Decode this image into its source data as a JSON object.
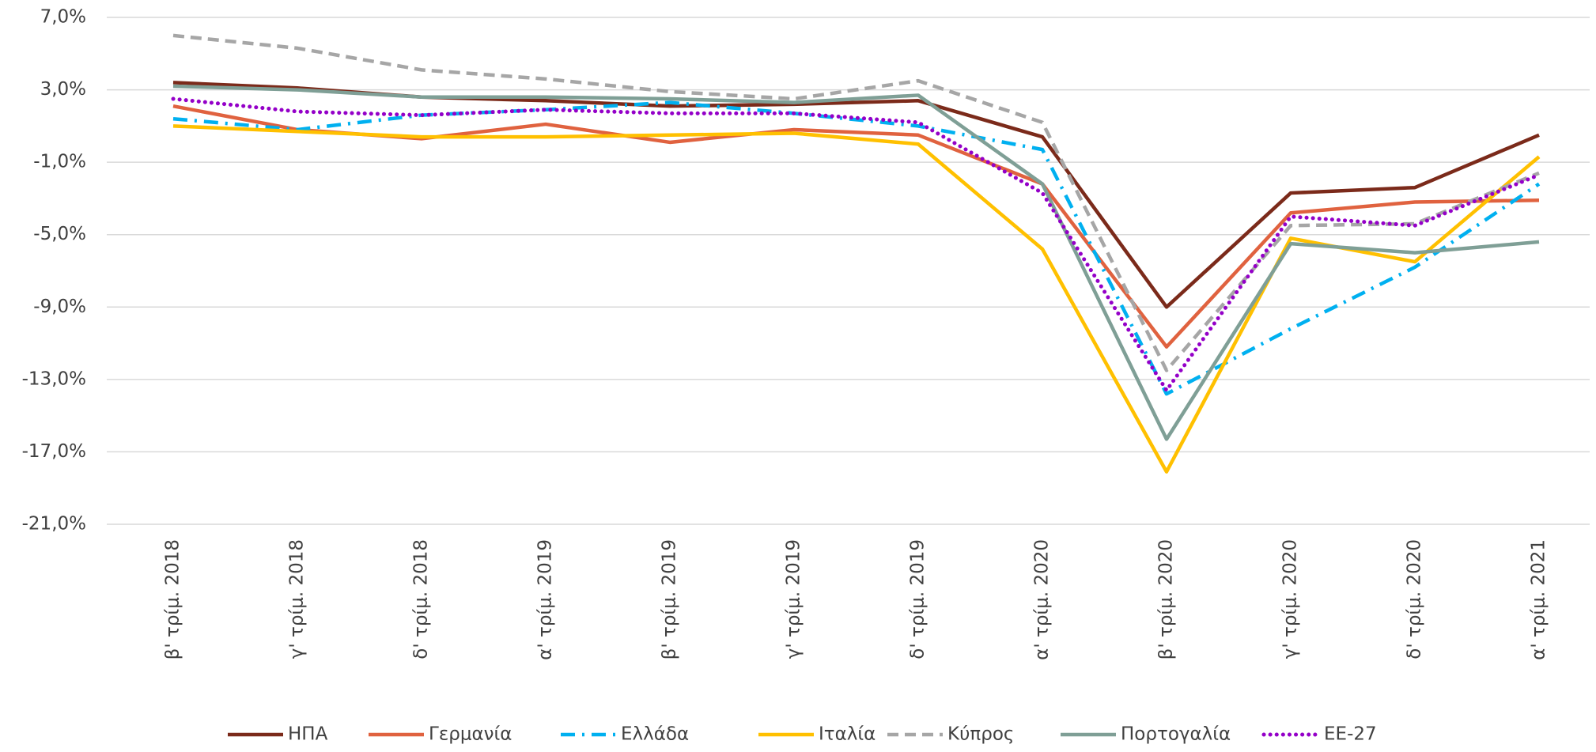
{
  "chart_data": {
    "type": "line",
    "categories": [
      "β' τρίμ. 2018",
      "γ' τρίμ. 2018",
      "δ' τρίμ. 2018",
      "α' τρίμ. 2019",
      "β' τρίμ. 2019",
      "γ' τρίμ. 2019",
      "δ' τρίμ. 2019",
      "α' τρίμ. 2020",
      "β' τρίμ. 2020",
      "γ' τρίμ. 2020",
      "δ' τρίμ. 2020",
      "α' τρίμ. 2021"
    ],
    "series": [
      {
        "name": "ΗΠΑ",
        "color": "#7b2a1a",
        "dash": "solid",
        "values": [
          3.4,
          3.1,
          2.6,
          2.4,
          2.1,
          2.2,
          2.4,
          0.4,
          -9.0,
          -2.7,
          -2.4,
          0.5
        ]
      },
      {
        "name": "Γερμανία",
        "color": "#e0623f",
        "dash": "solid",
        "values": [
          2.1,
          0.8,
          0.3,
          1.1,
          0.1,
          0.8,
          0.5,
          -2.2,
          -11.2,
          -3.8,
          -3.2,
          -3.1
        ]
      },
      {
        "name": "Ελλάδα",
        "color": "#00b0f0",
        "dash": "dashdot",
        "values": [
          1.4,
          0.8,
          1.6,
          1.9,
          2.3,
          1.7,
          1.0,
          -0.3,
          -13.8,
          -10.2,
          -6.8,
          -2.2
        ]
      },
      {
        "name": "Ιταλία",
        "color": "#ffc000",
        "dash": "solid",
        "values": [
          1.0,
          0.7,
          0.4,
          0.4,
          0.5,
          0.6,
          0.0,
          -5.8,
          -18.1,
          -5.2,
          -6.5,
          -0.7
        ]
      },
      {
        "name": "Κύπρος",
        "color": "#a6a6a6",
        "dash": "dashed",
        "values": [
          6.0,
          5.3,
          4.1,
          3.6,
          2.9,
          2.5,
          3.5,
          1.2,
          -12.5,
          -4.5,
          -4.4,
          -1.6
        ]
      },
      {
        "name": "Πορτογαλία",
        "color": "#7f9f96",
        "dash": "solid",
        "values": [
          3.2,
          3.0,
          2.6,
          2.6,
          2.5,
          2.3,
          2.7,
          -2.2,
          -16.3,
          -5.5,
          -6.0,
          -5.4
        ]
      },
      {
        "name": "ΕΕ-27",
        "color": "#9400c8",
        "dash": "dotted",
        "values": [
          2.5,
          1.8,
          1.6,
          1.9,
          1.7,
          1.7,
          1.2,
          -2.7,
          -13.6,
          -4.0,
          -4.5,
          -1.7
        ]
      }
    ],
    "ylim": [
      -21,
      7
    ],
    "yticks": [
      {
        "value": 7,
        "label": "7,0%"
      },
      {
        "value": 3,
        "label": "3,0%"
      },
      {
        "value": -1,
        "label": "-1,0%"
      },
      {
        "value": -5,
        "label": "-5,0%"
      },
      {
        "value": -9,
        "label": "-9,0%"
      },
      {
        "value": -13,
        "label": "-13,0%"
      },
      {
        "value": -17,
        "label": "-17,0%"
      },
      {
        "value": -21,
        "label": "-21,0%"
      }
    ],
    "grid": true,
    "legend": "bottom"
  }
}
